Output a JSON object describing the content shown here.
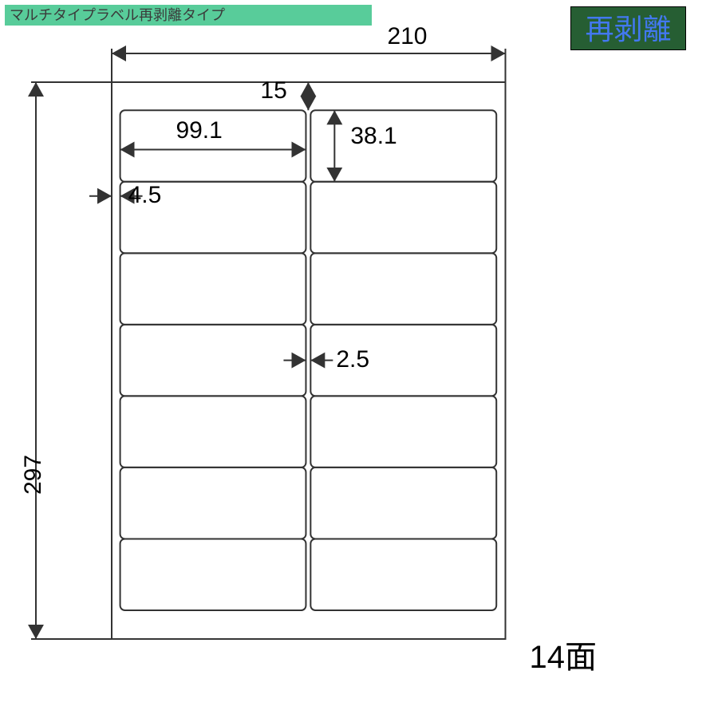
{
  "header": {
    "title": "マルチタイプラベル再剥離タイプ",
    "bg_color": "#58cc9a",
    "text_color": "#3a3a3a"
  },
  "badge": {
    "text": "再剥離",
    "bg_color": "#265e33",
    "text_color": "#4278f0",
    "border_color": "#000000"
  },
  "diagram": {
    "sheet_width_mm": 210,
    "sheet_height_mm": 297,
    "top_margin_mm": 15,
    "left_margin_mm": 4.5,
    "label_width_mm": 99.1,
    "label_height_mm": 38.1,
    "col_gap_mm": 2.5,
    "rows": 7,
    "cols": 2,
    "line_color": "#333333",
    "line_width": 2,
    "sheet_bg": "#ffffff",
    "page_bg": "#ffffff"
  },
  "labels": {
    "width_total": "210",
    "height_total": "297",
    "top_margin": "15",
    "left_margin": "4.5",
    "label_w": "99.1",
    "label_h": "38.1",
    "col_gap": "2.5",
    "count": "14面"
  },
  "fontsizes": {
    "header": 18,
    "badge": 36,
    "dim": 30,
    "count": 40
  }
}
